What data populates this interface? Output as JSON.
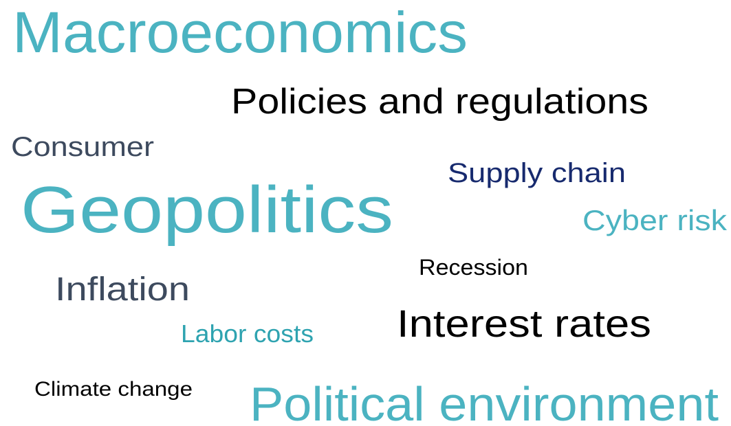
{
  "words": [
    "Macroeconomics",
    "Policies and regulations",
    "Consumer",
    "Supply chain",
    "Geopolitics",
    "Cyber risk",
    "Recession",
    "Inflation",
    "Interest rates",
    "Labor costs",
    "Climate change",
    "Political environment"
  ]
}
